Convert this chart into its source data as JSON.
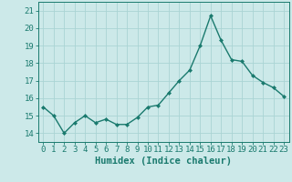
{
  "x": [
    0,
    1,
    2,
    3,
    4,
    5,
    6,
    7,
    8,
    9,
    10,
    11,
    12,
    13,
    14,
    15,
    16,
    17,
    18,
    19,
    20,
    21,
    22,
    23
  ],
  "y": [
    15.5,
    15.0,
    14.0,
    14.6,
    15.0,
    14.6,
    14.8,
    14.5,
    14.5,
    14.9,
    15.5,
    15.6,
    16.3,
    17.0,
    17.6,
    19.0,
    20.7,
    19.3,
    18.2,
    18.1,
    17.3,
    16.9,
    16.6,
    16.1
  ],
  "line_color": "#1a7a6e",
  "marker": "D",
  "marker_size": 2.0,
  "bg_color": "#cce9e9",
  "grid_color": "#aad4d4",
  "xlabel": "Humidex (Indice chaleur)",
  "ylim": [
    13.5,
    21.5
  ],
  "yticks": [
    14,
    15,
    16,
    17,
    18,
    19,
    20,
    21
  ],
  "xlim": [
    -0.5,
    23.5
  ],
  "xticks": [
    0,
    1,
    2,
    3,
    4,
    5,
    6,
    7,
    8,
    9,
    10,
    11,
    12,
    13,
    14,
    15,
    16,
    17,
    18,
    19,
    20,
    21,
    22,
    23
  ],
  "xlabel_fontsize": 7.5,
  "tick_fontsize": 6.5,
  "line_width": 1.0
}
